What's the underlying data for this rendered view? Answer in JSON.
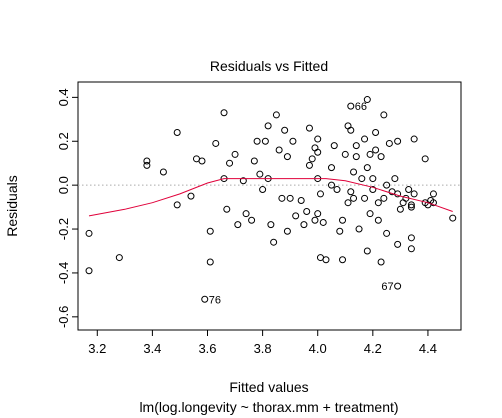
{
  "chart_data": {
    "type": "scatter",
    "title": "Residuals vs Fitted",
    "xlabel": "Fitted values",
    "subtitle": "lm(log.longevity ~ thorax.mm + treatment)",
    "ylabel": "Residuals",
    "xlim": [
      3.13,
      4.52
    ],
    "ylim": [
      -0.66,
      0.47
    ],
    "x_ticks": [
      3.2,
      3.4,
      3.6,
      3.8,
      4.0,
      4.2,
      4.4
    ],
    "x_tick_labels": [
      "3.2",
      "3.4",
      "3.6",
      "3.8",
      "4.0",
      "4.2",
      "4.4"
    ],
    "y_ticks": [
      -0.6,
      -0.4,
      -0.2,
      0.0,
      0.2,
      0.4
    ],
    "y_tick_labels": [
      "-0.6",
      "-0.4",
      "-0.2",
      "0.0",
      "0.2",
      "0.4"
    ],
    "reference_line": {
      "y": 0.0,
      "style": "dotted",
      "color": "#aaaaaa"
    },
    "point_style": {
      "shape": "open-circle",
      "color": "#000000"
    },
    "points": [
      {
        "x": 3.17,
        "y": -0.22
      },
      {
        "x": 3.17,
        "y": -0.39
      },
      {
        "x": 3.28,
        "y": -0.33
      },
      {
        "x": 3.38,
        "y": 0.11
      },
      {
        "x": 3.38,
        "y": 0.09
      },
      {
        "x": 3.44,
        "y": 0.06
      },
      {
        "x": 3.49,
        "y": 0.24
      },
      {
        "x": 3.49,
        "y": -0.09
      },
      {
        "x": 3.54,
        "y": -0.05
      },
      {
        "x": 3.56,
        "y": 0.12
      },
      {
        "x": 3.58,
        "y": 0.11
      },
      {
        "x": 3.59,
        "y": -0.52
      },
      {
        "x": 3.61,
        "y": -0.21
      },
      {
        "x": 3.61,
        "y": -0.35
      },
      {
        "x": 3.63,
        "y": 0.19
      },
      {
        "x": 3.66,
        "y": 0.33
      },
      {
        "x": 3.66,
        "y": 0.03
      },
      {
        "x": 3.67,
        "y": -0.11
      },
      {
        "x": 3.68,
        "y": 0.1
      },
      {
        "x": 3.7,
        "y": 0.14
      },
      {
        "x": 3.71,
        "y": -0.18
      },
      {
        "x": 3.73,
        "y": 0.02
      },
      {
        "x": 3.74,
        "y": -0.13
      },
      {
        "x": 3.76,
        "y": -0.16
      },
      {
        "x": 3.77,
        "y": 0.11
      },
      {
        "x": 3.78,
        "y": 0.2
      },
      {
        "x": 3.79,
        "y": 0.05
      },
      {
        "x": 3.8,
        "y": -0.02
      },
      {
        "x": 3.81,
        "y": 0.2
      },
      {
        "x": 3.82,
        "y": 0.27
      },
      {
        "x": 3.82,
        "y": 0.03
      },
      {
        "x": 3.83,
        "y": -0.18
      },
      {
        "x": 3.84,
        "y": -0.26
      },
      {
        "x": 3.85,
        "y": 0.32
      },
      {
        "x": 3.86,
        "y": 0.16
      },
      {
        "x": 3.87,
        "y": -0.06
      },
      {
        "x": 3.88,
        "y": 0.25
      },
      {
        "x": 3.89,
        "y": -0.21
      },
      {
        "x": 3.89,
        "y": 0.13
      },
      {
        "x": 3.9,
        "y": -0.06
      },
      {
        "x": 3.91,
        "y": 0.2
      },
      {
        "x": 3.92,
        "y": -0.14
      },
      {
        "x": 3.94,
        "y": -0.07
      },
      {
        "x": 3.95,
        "y": -0.18
      },
      {
        "x": 3.96,
        "y": -0.12
      },
      {
        "x": 3.97,
        "y": 0.26
      },
      {
        "x": 3.97,
        "y": 0.09
      },
      {
        "x": 3.98,
        "y": 0.12
      },
      {
        "x": 3.99,
        "y": 0.17
      },
      {
        "x": 3.99,
        "y": -0.16
      },
      {
        "x": 4.0,
        "y": 0.21
      },
      {
        "x": 4.0,
        "y": 0.15
      },
      {
        "x": 4.0,
        "y": 0.03
      },
      {
        "x": 4.0,
        "y": -0.13
      },
      {
        "x": 4.01,
        "y": -0.04
      },
      {
        "x": 4.01,
        "y": -0.33
      },
      {
        "x": 4.02,
        "y": -0.17
      },
      {
        "x": 4.03,
        "y": -0.34
      },
      {
        "x": 4.05,
        "y": 0.08
      },
      {
        "x": 4.05,
        "y": 0.0
      },
      {
        "x": 4.06,
        "y": 0.18
      },
      {
        "x": 4.07,
        "y": -0.02
      },
      {
        "x": 4.08,
        "y": -0.21
      },
      {
        "x": 4.09,
        "y": -0.34
      },
      {
        "x": 4.09,
        "y": -0.16
      },
      {
        "x": 4.1,
        "y": 0.14
      },
      {
        "x": 4.11,
        "y": 0.27
      },
      {
        "x": 4.11,
        "y": -0.08
      },
      {
        "x": 4.12,
        "y": 0.36
      },
      {
        "x": 4.12,
        "y": 0.25
      },
      {
        "x": 4.12,
        "y": -0.03
      },
      {
        "x": 4.13,
        "y": 0.06
      },
      {
        "x": 4.13,
        "y": -0.06
      },
      {
        "x": 4.14,
        "y": 0.18
      },
      {
        "x": 4.14,
        "y": 0.13
      },
      {
        "x": 4.15,
        "y": -0.2
      },
      {
        "x": 4.16,
        "y": 0.03
      },
      {
        "x": 4.17,
        "y": 0.21
      },
      {
        "x": 4.17,
        "y": -0.06
      },
      {
        "x": 4.18,
        "y": -0.3
      },
      {
        "x": 4.18,
        "y": 0.39
      },
      {
        "x": 4.18,
        "y": 0.08
      },
      {
        "x": 4.19,
        "y": 0.14
      },
      {
        "x": 4.19,
        "y": -0.13
      },
      {
        "x": 4.2,
        "y": 0.03
      },
      {
        "x": 4.2,
        "y": -0.02
      },
      {
        "x": 4.21,
        "y": 0.24
      },
      {
        "x": 4.21,
        "y": 0.16
      },
      {
        "x": 4.22,
        "y": -0.08
      },
      {
        "x": 4.22,
        "y": -0.16
      },
      {
        "x": 4.23,
        "y": -0.35
      },
      {
        "x": 4.23,
        "y": 0.13
      },
      {
        "x": 4.24,
        "y": 0.32
      },
      {
        "x": 4.24,
        "y": -0.06
      },
      {
        "x": 4.25,
        "y": -0.22
      },
      {
        "x": 4.25,
        "y": 0.0
      },
      {
        "x": 4.26,
        "y": 0.19
      },
      {
        "x": 4.27,
        "y": -0.03
      },
      {
        "x": 4.28,
        "y": 0.03
      },
      {
        "x": 4.29,
        "y": 0.2
      },
      {
        "x": 4.29,
        "y": -0.27
      },
      {
        "x": 4.29,
        "y": -0.46
      },
      {
        "x": 4.29,
        "y": -0.04
      },
      {
        "x": 4.3,
        "y": -0.11
      },
      {
        "x": 4.31,
        "y": -0.08
      },
      {
        "x": 4.32,
        "y": -0.06
      },
      {
        "x": 4.33,
        "y": -0.02
      },
      {
        "x": 4.34,
        "y": -0.09
      },
      {
        "x": 4.34,
        "y": -0.1
      },
      {
        "x": 4.34,
        "y": -0.24
      },
      {
        "x": 4.34,
        "y": -0.29
      },
      {
        "x": 4.35,
        "y": 0.21
      },
      {
        "x": 4.35,
        "y": -0.04
      },
      {
        "x": 4.39,
        "y": 0.12
      },
      {
        "x": 4.39,
        "y": -0.08
      },
      {
        "x": 4.4,
        "y": -0.09
      },
      {
        "x": 4.41,
        "y": -0.07
      },
      {
        "x": 4.42,
        "y": -0.04
      },
      {
        "x": 4.42,
        "y": -0.08
      },
      {
        "x": 4.49,
        "y": -0.15
      }
    ],
    "labeled_points": [
      {
        "label": "66",
        "x": 4.12,
        "y": 0.36
      },
      {
        "label": "67",
        "x": 4.29,
        "y": -0.46
      },
      {
        "label": "76",
        "x": 3.59,
        "y": -0.52
      }
    ],
    "smooth_line": {
      "color": "#e0003a",
      "x": [
        3.17,
        3.3,
        3.4,
        3.5,
        3.6,
        3.66,
        3.75,
        3.85,
        3.95,
        4.03,
        4.1,
        4.2,
        4.3,
        4.4,
        4.49
      ],
      "y": [
        -0.14,
        -0.11,
        -0.08,
        -0.04,
        0.01,
        0.03,
        0.03,
        0.03,
        0.03,
        0.03,
        0.02,
        -0.01,
        -0.05,
        -0.08,
        -0.12
      ]
    }
  }
}
